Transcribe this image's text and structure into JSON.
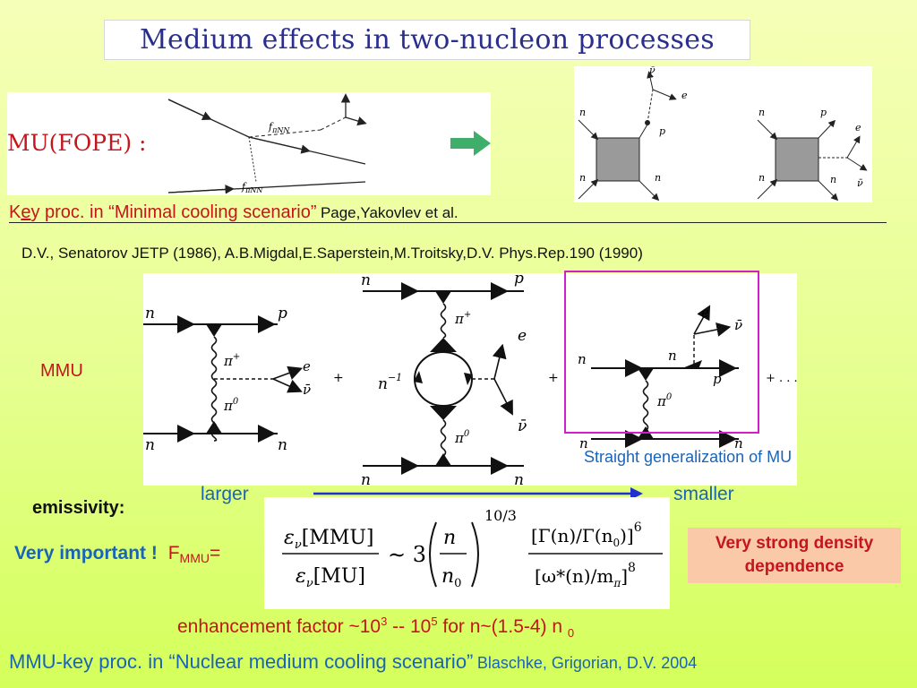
{
  "title": "Medium effects in two-nucleon processes",
  "mu_fope_label": "MU(FOPE) :",
  "key_proc": {
    "prefix": "K",
    "cursor_char": "e",
    "rest": "y proc. in “Minimal cooling scenario”",
    "authors": "Page,Yakovlev et al."
  },
  "reference_line": "D.V., Senatorov JETP (1986), A.B.Migdal,E.Saperstein,M.Troitsky,D.V. Phys.Rep.190 (1990)",
  "mmu_label": "MMU",
  "straight_generalization": "Straight generalization of MU",
  "scale": {
    "larger": "larger",
    "smaller": "smaller"
  },
  "emissivity_label": "emissivity:",
  "very_important": "Very important !",
  "f_symbol": "F",
  "f_subscript": "MMU",
  "f_equals": "=",
  "density_box": {
    "line1": "Very strong density",
    "line2": "dependence"
  },
  "enhancement": {
    "prefix": "enhancement  factor ~10",
    "exp1": "3",
    "mid": " -- 10",
    "exp2": "5",
    "suffix": " for n~(1.5-4) n ",
    "sub": "0"
  },
  "footer": {
    "main": "MMU-key proc. in “Nuclear medium cooling scenario”",
    "authors": "Blaschke, Grigorian, D.V. 2004"
  },
  "diagram_labels": {
    "f_pi_nn": "f",
    "pi_nn_sub": "πNN",
    "n": "n",
    "p": "p",
    "e": "e",
    "nu": "ν",
    "nubar": "ν̄",
    "pi_plus": "π",
    "plus_sup": "+",
    "pi_zero": "π",
    "zero_sup": "0",
    "n_inverse": "n",
    "minus_one_sup": "−1",
    "plus": "+",
    "ellipsis": "+ . . .",
    "eps": "ε",
    "nu_sub": "ν",
    "mmu_bracket": "[MMU]",
    "mu_bracket": "[MU]",
    "sim3": "∼ 3",
    "n0": "n",
    "zero": "0",
    "exponent_10_3": "10/3",
    "exponent_6": "6",
    "exponent_8": "8",
    "gamma_ratio": "[Γ(n)/Γ(n",
    "gamma_close": ")]",
    "omega_ratio": "[ω*(n)/m",
    "omega_close": "]",
    "pi_sub": "π"
  },
  "colors": {
    "title": "#2a2f8f",
    "red_text": "#c4161c",
    "blue_text": "#1a64b8",
    "arrow_blue": "#1f2fd0",
    "green_arrow": "#3fae6a",
    "magenta_box": "#d01fc8",
    "density_box_bg": "#f9c9a8"
  }
}
